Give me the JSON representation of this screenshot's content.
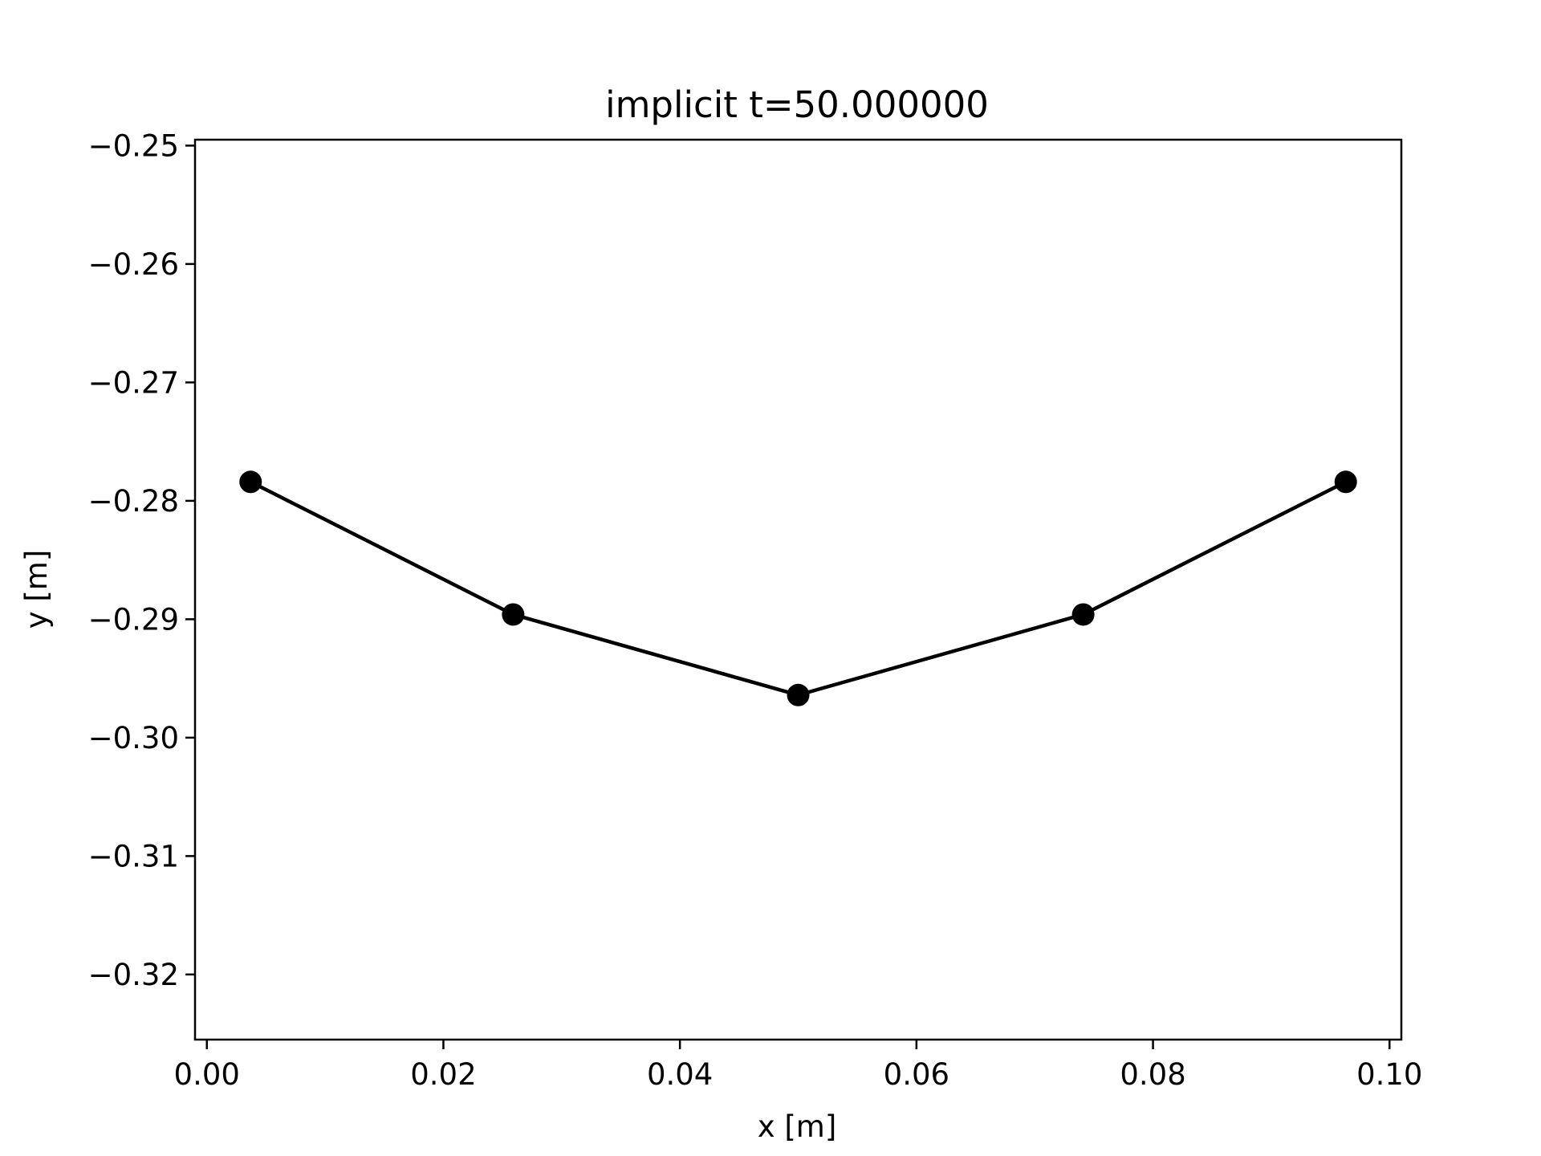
{
  "chart_data": {
    "type": "line",
    "title": "implicit t=50.000000",
    "xlabel": "x [m]",
    "ylabel": "y [m]",
    "xlim": [
      -0.001,
      0.101
    ],
    "ylim": [
      -0.3255,
      -0.2495
    ],
    "xticks": [
      0.0,
      0.02,
      0.04,
      0.06,
      0.08,
      0.1
    ],
    "xtick_labels": [
      "0.00",
      "0.02",
      "0.04",
      "0.06",
      "0.08",
      "0.10"
    ],
    "yticks": [
      -0.25,
      -0.26,
      -0.27,
      -0.28,
      -0.29,
      -0.3,
      -0.31,
      -0.32
    ],
    "ytick_labels": [
      "−0.25",
      "−0.26",
      "−0.27",
      "−0.28",
      "−0.29",
      "−0.30",
      "−0.31",
      "−0.32"
    ],
    "grid": false,
    "series": [
      {
        "color": "#000000",
        "marker": "circle",
        "x": [
          0.0037,
          0.0259,
          0.05,
          0.0741,
          0.0963
        ],
        "y": [
          -0.2784,
          -0.2896,
          -0.2964,
          -0.2896,
          -0.2784
        ]
      }
    ]
  }
}
